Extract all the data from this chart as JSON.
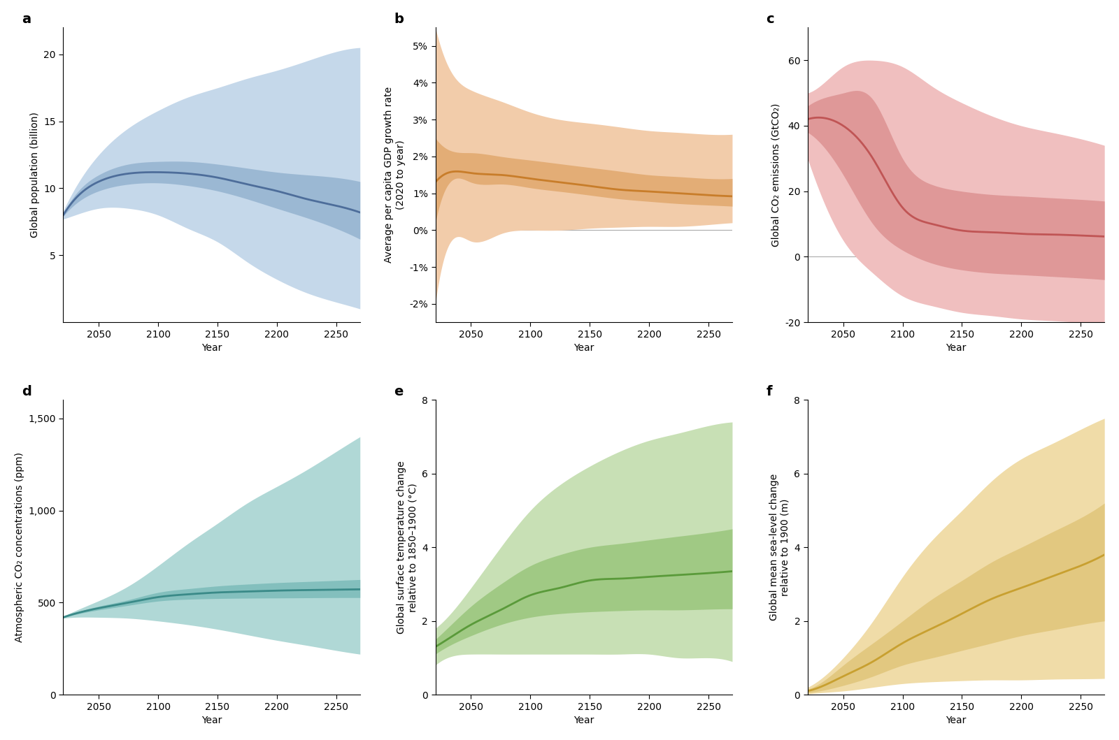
{
  "years": [
    2020,
    2030,
    2050,
    2075,
    2100,
    2125,
    2150,
    2175,
    2200,
    2225,
    2250,
    2270
  ],
  "panel_labels": [
    "a",
    "b",
    "c",
    "d",
    "e",
    "f"
  ],
  "background_color": "#ffffff",
  "pop": {
    "ylabel": "Global population (billion)",
    "color": "#4d6d9a",
    "fill_inner_color": "#8aabca",
    "fill_outer_color": "#c5d8ea",
    "mean": [
      8.0,
      9.2,
      10.5,
      11.1,
      11.2,
      11.1,
      10.8,
      10.3,
      9.8,
      9.2,
      8.7,
      8.2
    ],
    "inner_low": [
      7.9,
      8.8,
      9.8,
      10.3,
      10.4,
      10.2,
      9.8,
      9.2,
      8.5,
      7.8,
      7.0,
      6.2
    ],
    "inner_high": [
      8.1,
      9.5,
      11.0,
      11.8,
      12.0,
      12.0,
      11.8,
      11.5,
      11.2,
      11.0,
      10.8,
      10.5
    ],
    "outer_low": [
      7.7,
      8.0,
      8.5,
      8.5,
      8.0,
      7.0,
      6.0,
      4.5,
      3.2,
      2.2,
      1.5,
      1.0
    ],
    "outer_high": [
      8.3,
      10.0,
      12.5,
      14.5,
      15.8,
      16.8,
      17.5,
      18.2,
      18.8,
      19.5,
      20.2,
      20.5
    ],
    "ylim": [
      0,
      22
    ],
    "yticks": [
      5,
      10,
      15,
      20
    ],
    "hline": null
  },
  "gdp": {
    "ylabel": "Average per capita GDP growth rate\n(2020 to year)",
    "color": "#c87d2a",
    "fill_inner_color": "#dda060",
    "fill_outer_color": "#f2ccaa",
    "mean": [
      1.3,
      1.55,
      1.55,
      1.5,
      1.4,
      1.3,
      1.2,
      1.1,
      1.05,
      1.0,
      0.95,
      0.92
    ],
    "inner_low": [
      0.2,
      1.2,
      1.3,
      1.25,
      1.15,
      1.05,
      0.95,
      0.85,
      0.78,
      0.72,
      0.68,
      0.65
    ],
    "inner_high": [
      2.5,
      2.2,
      2.1,
      2.0,
      1.9,
      1.8,
      1.7,
      1.6,
      1.5,
      1.45,
      1.4,
      1.4
    ],
    "outer_low": [
      -2.0,
      -0.5,
      -0.3,
      -0.1,
      0.0,
      0.0,
      0.05,
      0.08,
      0.1,
      0.1,
      0.15,
      0.2
    ],
    "outer_high": [
      5.5,
      4.5,
      3.8,
      3.5,
      3.2,
      3.0,
      2.9,
      2.8,
      2.7,
      2.65,
      2.6,
      2.6
    ],
    "ylim": [
      -2.5,
      5.5
    ],
    "yticks": [
      -2,
      -1,
      0,
      1,
      2,
      3,
      4,
      5
    ],
    "ytick_labels": [
      "-2%",
      "-1%",
      "0%",
      "1%",
      "2%",
      "3%",
      "4%",
      "5%"
    ],
    "hline": 0.0
  },
  "co2": {
    "ylabel": "Global CO₂ emissions (GtCO₂)",
    "color": "#c05555",
    "fill_inner_color": "#d88888",
    "fill_outer_color": "#f0bfbf",
    "mean": [
      42.0,
      42.5,
      40.0,
      30.0,
      15.0,
      10.0,
      8.0,
      7.5,
      7.0,
      6.8,
      6.5,
      6.2
    ],
    "inner_low": [
      38.0,
      35.0,
      25.0,
      10.0,
      2.0,
      -2.0,
      -4.0,
      -5.0,
      -5.5,
      -6.0,
      -6.5,
      -7.0
    ],
    "inner_high": [
      46.0,
      48.0,
      50.0,
      48.0,
      30.0,
      22.0,
      20.0,
      19.0,
      18.5,
      18.0,
      17.5,
      17.0
    ],
    "outer_low": [
      30.0,
      20.0,
      5.0,
      -5.0,
      -12.0,
      -15.0,
      -17.0,
      -18.0,
      -19.0,
      -19.5,
      -20.0,
      -20.0
    ],
    "outer_high": [
      50.0,
      52.0,
      58.0,
      60.0,
      58.0,
      52.0,
      47.0,
      43.0,
      40.0,
      38.0,
      36.0,
      34.0
    ],
    "ylim": [
      -20,
      70
    ],
    "yticks": [
      -20,
      0,
      20,
      40,
      60
    ],
    "hline": 0.0
  },
  "atm": {
    "ylabel": "Atmospheric CO₂ concentrations (ppm)",
    "color": "#3a8a88",
    "fill_inner_color": "#70b5b3",
    "fill_outer_color": "#b0d8d6",
    "mean": [
      420,
      440,
      470,
      500,
      530,
      545,
      555,
      560,
      565,
      568,
      570,
      572
    ],
    "inner_low": [
      418,
      435,
      460,
      485,
      508,
      518,
      522,
      524,
      525,
      526,
      527,
      527
    ],
    "inner_high": [
      422,
      445,
      480,
      515,
      555,
      575,
      590,
      600,
      608,
      614,
      620,
      625
    ],
    "outer_low": [
      415,
      420,
      420,
      415,
      400,
      380,
      355,
      325,
      295,
      268,
      240,
      220
    ],
    "outer_high": [
      425,
      455,
      510,
      590,
      700,
      820,
      930,
      1040,
      1130,
      1220,
      1320,
      1400
    ],
    "ylim": [
      0,
      1600
    ],
    "yticks": [
      0,
      500,
      1000,
      1500
    ],
    "ytick_labels": [
      "0",
      "500",
      "1,000",
      "1,500"
    ],
    "hline": null
  },
  "temp": {
    "ylabel": "Global surface temperature change\nrelative to 1850–1900 (°C)",
    "color": "#5a9a3a",
    "fill_inner_color": "#90c070",
    "fill_outer_color": "#c8e0b5",
    "mean": [
      1.3,
      1.5,
      1.9,
      2.3,
      2.7,
      2.9,
      3.1,
      3.15,
      3.2,
      3.25,
      3.3,
      3.35
    ],
    "inner_low": [
      1.1,
      1.3,
      1.6,
      1.9,
      2.1,
      2.2,
      2.25,
      2.28,
      2.3,
      2.3,
      2.32,
      2.33
    ],
    "inner_high": [
      1.5,
      1.8,
      2.4,
      3.0,
      3.5,
      3.8,
      4.0,
      4.1,
      4.2,
      4.3,
      4.4,
      4.5
    ],
    "outer_low": [
      0.8,
      1.0,
      1.1,
      1.1,
      1.1,
      1.1,
      1.1,
      1.1,
      1.1,
      1.0,
      1.0,
      0.9
    ],
    "outer_high": [
      1.8,
      2.1,
      2.9,
      4.0,
      5.0,
      5.7,
      6.2,
      6.6,
      6.9,
      7.1,
      7.3,
      7.4
    ],
    "ylim": [
      0,
      8
    ],
    "yticks": [
      0,
      2,
      4,
      6,
      8
    ],
    "hline": null
  },
  "sea": {
    "ylabel": "Global mean sea-level change\nrelative to 1900 (m)",
    "color": "#c8a030",
    "fill_inner_color": "#ddc070",
    "fill_outer_color": "#f0dca8",
    "mean": [
      0.1,
      0.2,
      0.5,
      0.9,
      1.4,
      1.8,
      2.2,
      2.6,
      2.9,
      3.2,
      3.5,
      3.8
    ],
    "inner_low": [
      0.05,
      0.1,
      0.25,
      0.5,
      0.8,
      1.0,
      1.2,
      1.4,
      1.6,
      1.75,
      1.9,
      2.0
    ],
    "inner_high": [
      0.15,
      0.3,
      0.8,
      1.4,
      2.0,
      2.6,
      3.1,
      3.6,
      4.0,
      4.4,
      4.8,
      5.2
    ],
    "outer_low": [
      0.02,
      0.05,
      0.1,
      0.2,
      0.3,
      0.35,
      0.38,
      0.4,
      0.4,
      0.42,
      0.43,
      0.44
    ],
    "outer_high": [
      0.2,
      0.4,
      1.0,
      2.0,
      3.2,
      4.2,
      5.0,
      5.8,
      6.4,
      6.8,
      7.2,
      7.5
    ],
    "ylim": [
      0,
      8
    ],
    "yticks": [
      0,
      2,
      4,
      6,
      8
    ],
    "hline": null
  },
  "xlim": [
    2020,
    2270
  ],
  "xticks": [
    2050,
    2100,
    2150,
    2200,
    2250
  ],
  "xlabel": "Year"
}
